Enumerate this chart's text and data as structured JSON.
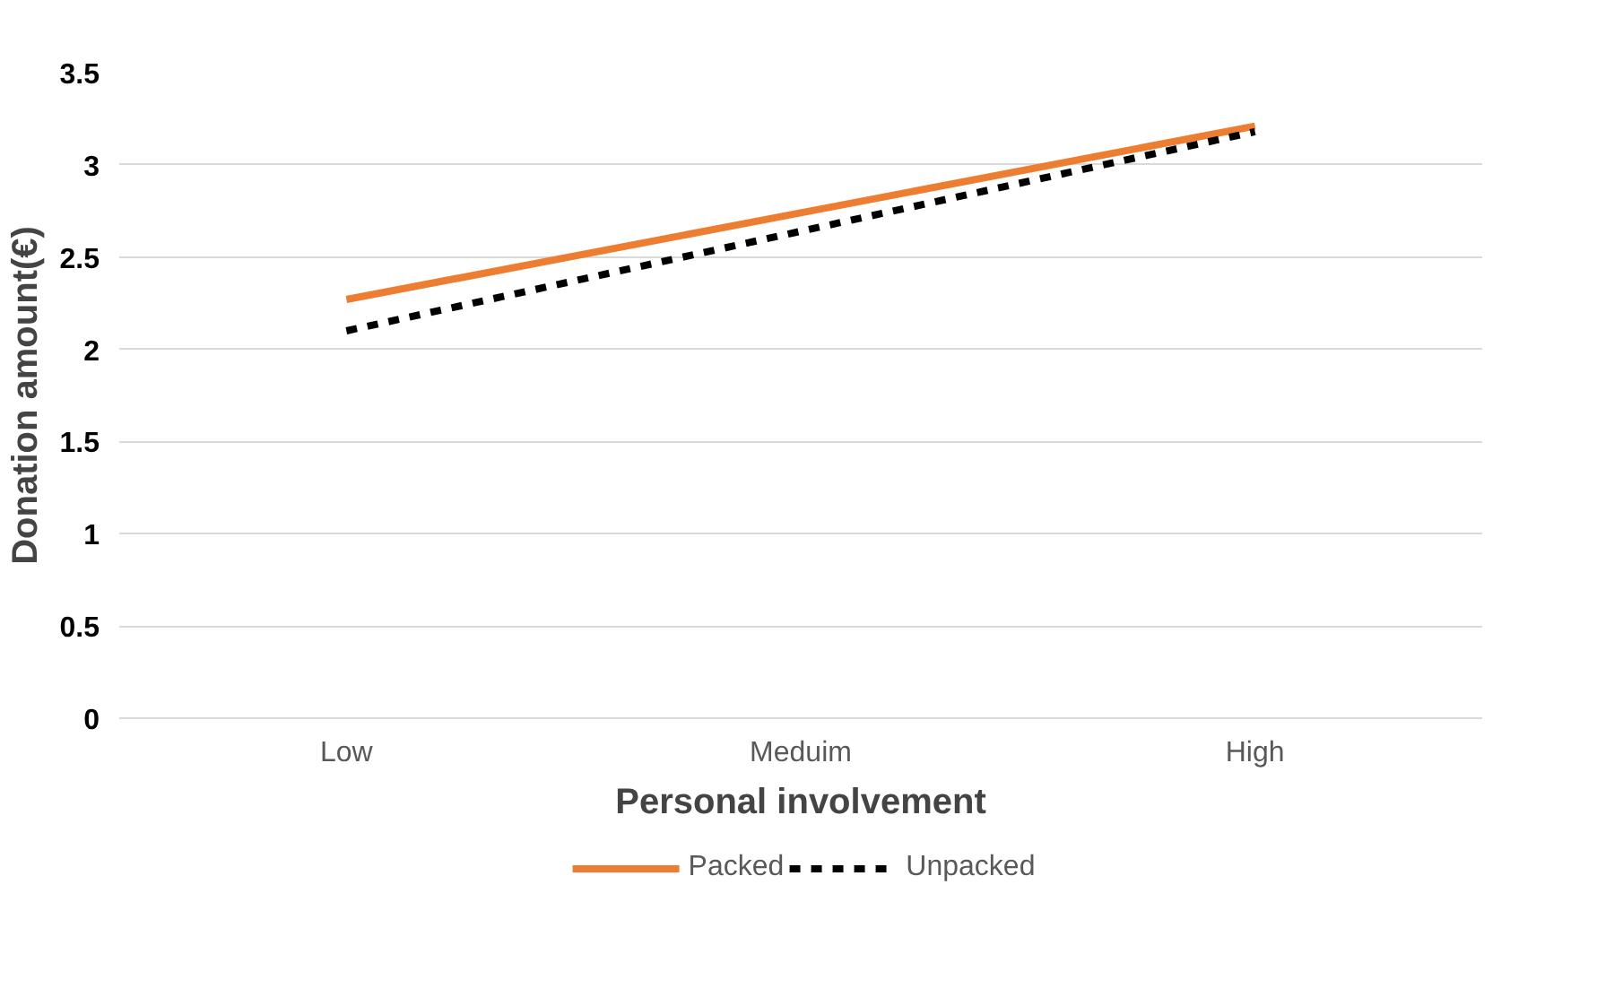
{
  "chart_data": {
    "type": "line",
    "xlabel": "Personal involvement",
    "ylabel": "Donation amount(€)",
    "categories": [
      "Low",
      "Meduim",
      "High"
    ],
    "series": [
      {
        "name": "Packed",
        "color": "#ed7d31",
        "values": [
          2.27,
          2.74,
          3.21
        ],
        "line_style": "solid"
      },
      {
        "name": "Unpacked",
        "color": "#000000",
        "values": [
          2.1,
          2.64,
          3.18
        ],
        "line_style": "dashed"
      }
    ],
    "ylim": [
      0,
      3.5
    ],
    "yticks": [
      0,
      0.5,
      1,
      1.5,
      2,
      2.5,
      3,
      3.5
    ],
    "grid": "y",
    "legend": "bottom",
    "marker": "none"
  }
}
